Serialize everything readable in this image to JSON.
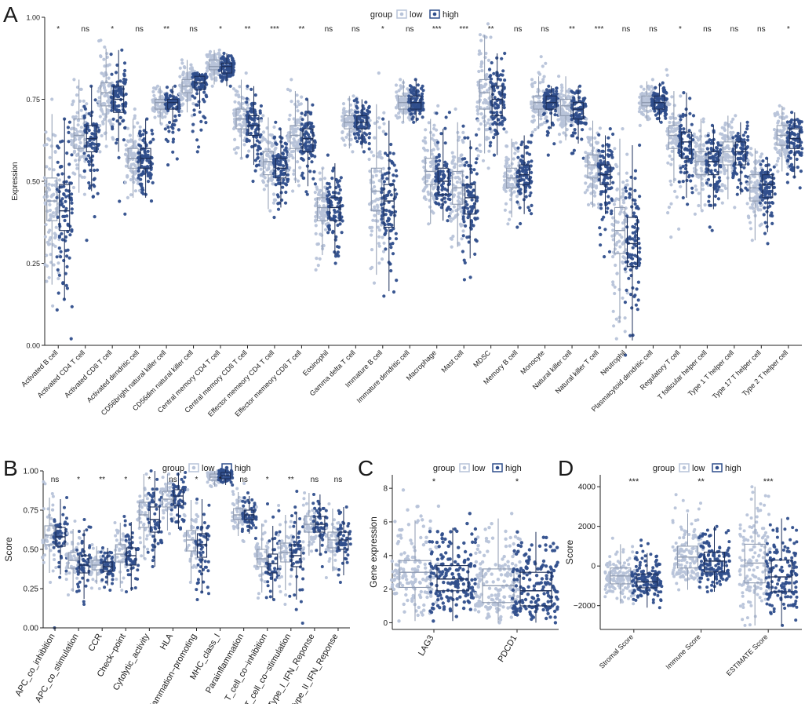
{
  "colors": {
    "low": "#b7c3d9",
    "high": "#2f4e8c",
    "low_dark": "#8e9ab0",
    "high_dark": "#1c2f5a"
  },
  "chart_data": [
    {
      "panel": "A",
      "type": "boxplot",
      "ylabel": "Expression",
      "ylim": [
        0,
        1
      ],
      "yticks": [
        "0.00",
        "0.25",
        "0.50",
        "0.75",
        "1.00"
      ],
      "legend": {
        "title": "group",
        "labels": [
          "low",
          "high"
        ],
        "placement": "top"
      },
      "categories": [
        "Activated B cell",
        "Activated CD4 T cell",
        "Activated CD8 T cell",
        "Activated dendritic cell",
        "CD56bright natural killer cell",
        "CD56dim natural killer cell",
        "Central memory CD4 T cell",
        "Central memory CD8 T cell",
        "Effector memeory CD4 T cell",
        "Effector memeory CD8 T cell",
        "Eosinophil",
        "Gamma delta T cell",
        "Immature  B cell",
        "Immature dendritic cell",
        "Macrophage",
        "Mast cell",
        "MDSC",
        "Memory B cell",
        "Monocyte",
        "Natural killer cell",
        "Natural killer T cell",
        "Neutrophil",
        "Plasmacytoid dendritic cell",
        "Regulatory T cell",
        "T follicular helper cell",
        "Type 1 T helper cell",
        "Type 17 T helper cell",
        "Type 2 T helper cell"
      ],
      "significance": [
        "*",
        "ns",
        "*",
        "ns",
        "**",
        "ns",
        "*",
        "**",
        "***",
        "**",
        "ns",
        "ns",
        "*",
        "ns",
        "***",
        "***",
        "**",
        "ns",
        "ns",
        "**",
        "***",
        "ns",
        "ns",
        "*",
        "ns",
        "ns",
        "ns",
        "*"
      ],
      "series": [
        {
          "name": "low",
          "medians": [
            0.44,
            0.64,
            0.77,
            0.57,
            0.74,
            0.79,
            0.85,
            0.69,
            0.56,
            0.64,
            0.42,
            0.68,
            0.47,
            0.74,
            0.53,
            0.48,
            0.77,
            0.51,
            0.74,
            0.73,
            0.55,
            0.35,
            0.74,
            0.64,
            0.56,
            0.59,
            0.48,
            0.64
          ],
          "q1": [
            0.38,
            0.6,
            0.73,
            0.54,
            0.72,
            0.77,
            0.84,
            0.66,
            0.52,
            0.6,
            0.38,
            0.66,
            0.41,
            0.72,
            0.49,
            0.43,
            0.72,
            0.48,
            0.72,
            0.7,
            0.51,
            0.28,
            0.73,
            0.6,
            0.52,
            0.55,
            0.44,
            0.61
          ],
          "q3": [
            0.51,
            0.69,
            0.8,
            0.6,
            0.75,
            0.81,
            0.87,
            0.72,
            0.59,
            0.67,
            0.45,
            0.7,
            0.54,
            0.76,
            0.57,
            0.53,
            0.81,
            0.54,
            0.76,
            0.75,
            0.58,
            0.42,
            0.76,
            0.67,
            0.59,
            0.62,
            0.52,
            0.67
          ],
          "mins": [
            0.12,
            0.46,
            0.59,
            0.45,
            0.67,
            0.7,
            0.79,
            0.57,
            0.41,
            0.47,
            0.23,
            0.59,
            0.19,
            0.68,
            0.37,
            0.3,
            0.54,
            0.37,
            0.65,
            0.62,
            0.42,
            0.02,
            0.67,
            0.33,
            0.4,
            0.42,
            0.32,
            0.53
          ],
          "maxs": [
            0.75,
            0.81,
            0.93,
            0.72,
            0.79,
            0.87,
            0.9,
            0.83,
            0.7,
            0.81,
            0.54,
            0.76,
            0.83,
            0.81,
            0.73,
            0.72,
            0.98,
            0.65,
            0.88,
            0.82,
            0.69,
            0.66,
            0.81,
            0.84,
            0.69,
            0.7,
            0.6,
            0.73
          ]
        },
        {
          "name": "high",
          "medians": [
            0.41,
            0.63,
            0.75,
            0.57,
            0.74,
            0.8,
            0.85,
            0.67,
            0.54,
            0.63,
            0.42,
            0.68,
            0.44,
            0.74,
            0.5,
            0.45,
            0.75,
            0.52,
            0.74,
            0.72,
            0.52,
            0.31,
            0.74,
            0.62,
            0.56,
            0.59,
            0.49,
            0.63
          ],
          "q1": [
            0.35,
            0.59,
            0.71,
            0.54,
            0.72,
            0.78,
            0.83,
            0.64,
            0.51,
            0.59,
            0.38,
            0.66,
            0.36,
            0.72,
            0.46,
            0.4,
            0.7,
            0.49,
            0.72,
            0.69,
            0.49,
            0.24,
            0.72,
            0.57,
            0.52,
            0.55,
            0.45,
            0.6
          ],
          "q3": [
            0.49,
            0.67,
            0.79,
            0.6,
            0.75,
            0.82,
            0.86,
            0.7,
            0.57,
            0.66,
            0.45,
            0.7,
            0.49,
            0.76,
            0.54,
            0.49,
            0.79,
            0.55,
            0.76,
            0.74,
            0.55,
            0.39,
            0.76,
            0.65,
            0.59,
            0.62,
            0.52,
            0.66
          ],
          "mins": [
            0.02,
            0.32,
            0.4,
            0.44,
            0.55,
            0.59,
            0.79,
            0.5,
            0.39,
            0.46,
            0.25,
            0.59,
            0.15,
            0.68,
            0.38,
            0.2,
            0.58,
            0.36,
            0.58,
            0.57,
            0.27,
            -0.03,
            0.68,
            0.43,
            0.35,
            0.46,
            0.31,
            0.48
          ],
          "maxs": [
            0.69,
            0.79,
            0.9,
            0.69,
            0.79,
            0.83,
            0.89,
            0.79,
            0.68,
            0.75,
            0.58,
            0.75,
            0.69,
            0.81,
            0.71,
            0.69,
            0.89,
            0.64,
            0.79,
            0.79,
            0.66,
            0.61,
            0.8,
            0.77,
            0.67,
            0.68,
            0.57,
            0.71
          ]
        }
      ]
    },
    {
      "panel": "B",
      "type": "boxplot",
      "ylabel": "Score",
      "ylim": [
        0,
        1
      ],
      "yticks": [
        "0.00",
        "0.25",
        "0.50",
        "0.75",
        "1.00"
      ],
      "legend": {
        "title": "group",
        "labels": [
          "low",
          "high"
        ],
        "placement": "top"
      },
      "categories": [
        "APC_co_inhibition",
        "APC_co_stimulation",
        "CCR",
        "Check−point",
        "Cytolytic_activity",
        "HLA",
        "Inflammation−promoting",
        "MHC_class_I",
        "Parainflammation",
        "T_cell_co−inhibition",
        "T_cell_co−stimulation",
        "Type_I_IFN_Reponse",
        "Type_II_IFN_Reponse"
      ],
      "significance": [
        "ns",
        "*",
        "**",
        "*",
        "*",
        "ns",
        "*",
        "*",
        "ns",
        "*",
        "**",
        "ns",
        "ns"
      ],
      "series": [
        {
          "name": "low",
          "medians": [
            0.59,
            0.43,
            0.4,
            0.47,
            0.72,
            0.82,
            0.56,
            0.96,
            0.72,
            0.44,
            0.48,
            0.66,
            0.56
          ],
          "q1": [
            0.53,
            0.38,
            0.37,
            0.42,
            0.64,
            0.77,
            0.49,
            0.94,
            0.69,
            0.39,
            0.42,
            0.61,
            0.51
          ],
          "q3": [
            0.65,
            0.48,
            0.43,
            0.53,
            0.8,
            0.87,
            0.62,
            0.98,
            0.76,
            0.5,
            0.54,
            0.71,
            0.61
          ],
          "mins": [
            0.29,
            0.21,
            0.25,
            0.24,
            0.44,
            0.6,
            0.29,
            0.9,
            0.55,
            0.19,
            0.15,
            0.44,
            0.32
          ],
          "maxs": [
            0.93,
            0.68,
            0.53,
            0.67,
            0.98,
            0.98,
            0.88,
            1.0,
            0.92,
            0.77,
            0.78,
            0.86,
            0.79
          ]
        },
        {
          "name": "high",
          "medians": [
            0.58,
            0.4,
            0.39,
            0.46,
            0.69,
            0.84,
            0.53,
            0.97,
            0.72,
            0.41,
            0.46,
            0.66,
            0.56
          ],
          "q1": [
            0.52,
            0.35,
            0.36,
            0.4,
            0.61,
            0.78,
            0.45,
            0.95,
            0.69,
            0.35,
            0.39,
            0.61,
            0.5
          ],
          "q3": [
            0.64,
            0.46,
            0.42,
            0.51,
            0.77,
            0.88,
            0.6,
            0.99,
            0.75,
            0.47,
            0.53,
            0.71,
            0.61
          ],
          "mins": [
            0.0,
            0.15,
            0.24,
            0.23,
            0.39,
            0.63,
            0.18,
            0.91,
            0.57,
            0.18,
            0.03,
            0.39,
            0.29
          ],
          "maxs": [
            0.83,
            0.69,
            0.51,
            0.71,
            1.0,
            0.99,
            0.82,
            1.01,
            0.86,
            0.79,
            0.87,
            0.85,
            0.77
          ]
        }
      ]
    },
    {
      "panel": "C",
      "type": "boxplot",
      "ylabel": "Gene expression",
      "ylim": [
        -0.4,
        8.8
      ],
      "yticks": [
        "0",
        "2",
        "4",
        "6",
        "8"
      ],
      "legend": {
        "title": "group",
        "labels": [
          "low",
          "high"
        ],
        "placement": "top"
      },
      "categories": [
        "LAG3",
        "PDCD1"
      ],
      "significance": [
        "*",
        "*"
      ],
      "series": [
        {
          "name": "low",
          "medians": [
            3.0,
            2.2
          ],
          "q1": [
            2.1,
            1.2
          ],
          "q3": [
            3.7,
            3.2
          ],
          "mins": [
            0.1,
            0.0
          ],
          "maxs": [
            7.9,
            6.5
          ]
        },
        {
          "name": "high",
          "medians": [
            2.6,
            1.9
          ],
          "q1": [
            1.9,
            1.0
          ],
          "q3": [
            3.4,
            3.0
          ],
          "mins": [
            0.1,
            0.0
          ],
          "maxs": [
            6.5,
            5.4
          ]
        }
      ]
    },
    {
      "panel": "D",
      "type": "boxplot",
      "ylabel": "Score",
      "ylim": [
        -3200,
        4600
      ],
      "yticks": [
        "−2000",
        "0",
        "2000",
        "4000"
      ],
      "legend": {
        "title": "group",
        "labels": [
          "low",
          "high"
        ],
        "placement": "top"
      },
      "categories": [
        "Stromal Score",
        "Immune Score",
        "ESTIMATE Score"
      ],
      "significance": [
        "***",
        "**",
        "***"
      ],
      "series": [
        {
          "name": "low",
          "medians": [
            -500,
            450,
            150
          ],
          "q1": [
            -900,
            -100,
            -850
          ],
          "q3": [
            -100,
            1000,
            1100
          ],
          "mins": [
            -1900,
            -1200,
            -3000
          ],
          "maxs": [
            1400,
            3600,
            4000
          ]
        },
        {
          "name": "high",
          "medians": [
            -800,
            250,
            -550
          ],
          "q1": [
            -1100,
            -300,
            -1300
          ],
          "q3": [
            -400,
            700,
            300
          ],
          "mins": [
            -2100,
            -1300,
            -3000
          ],
          "maxs": [
            1300,
            2000,
            2400
          ]
        }
      ]
    }
  ],
  "panel_letters": [
    "A",
    "B",
    "C",
    "D"
  ]
}
